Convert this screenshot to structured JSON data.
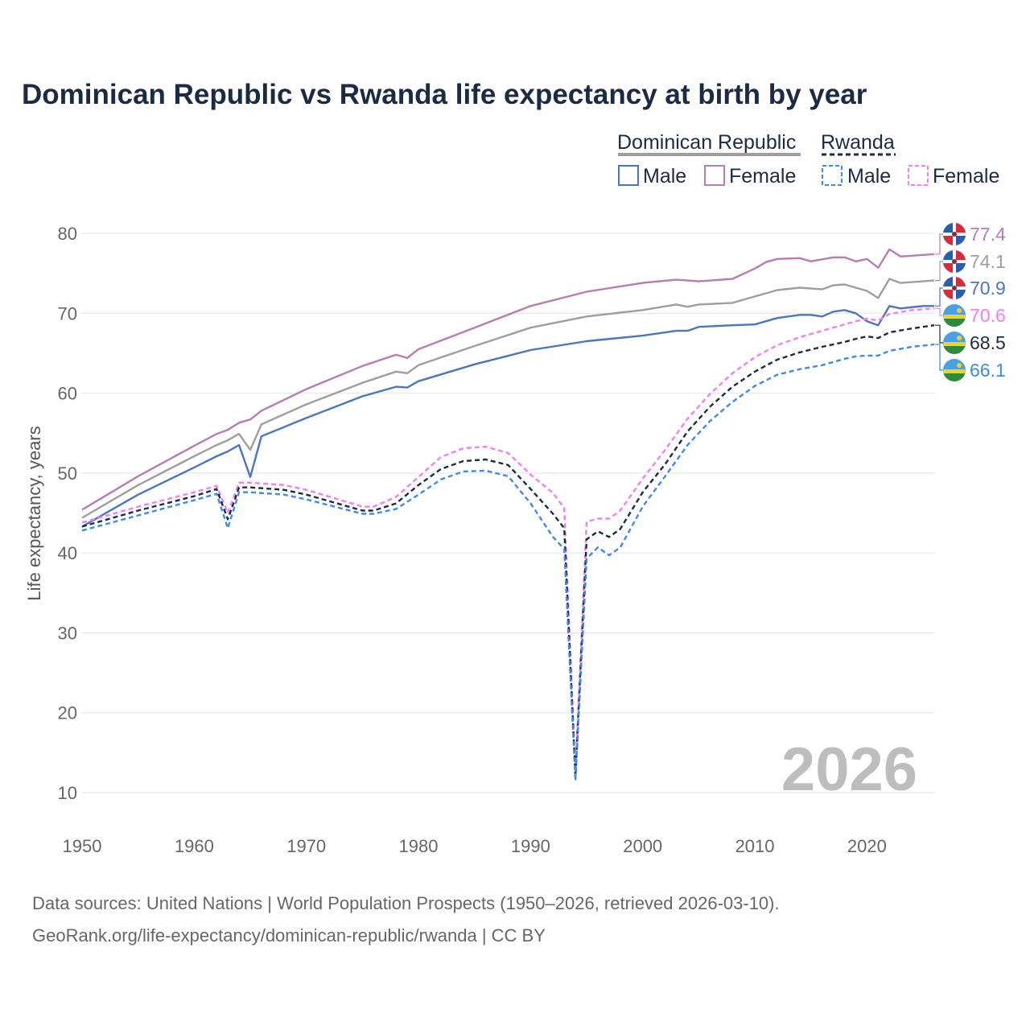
{
  "title": "Dominican Republic vs Rwanda life expectancy at birth by year",
  "legend": {
    "dominican_republic": {
      "name": "Dominican Republic",
      "male": "Male",
      "female": "Female"
    },
    "rwanda": {
      "name": "Rwanda",
      "male": "Male",
      "female": "Female"
    }
  },
  "big_year": "2026",
  "source_line1": "Data sources: United Nations | World Population Prospects (1950–2026, retrieved 2026-03-10).",
  "source_line2": "GeoRank.org/life-expectancy/dominican-republic/rwanda | CC BY",
  "colors": {
    "dr_female": "#b67db3",
    "dr_total": "#9e9e9e",
    "dr_male": "#4a76c0",
    "rw_female": "#f07ff0",
    "rw_total": "#1c2b44",
    "rw_male": "#3f8ae6"
  },
  "chart_data": {
    "type": "line",
    "title": "Dominican Republic vs Rwanda life expectancy at birth by year",
    "xlabel": "",
    "ylabel": "Life expectancy, years",
    "xlim": [
      1950,
      2026
    ],
    "ylim": [
      10,
      82
    ],
    "x_ticks": [
      1950,
      1960,
      1970,
      1980,
      1990,
      2000,
      2010,
      2020
    ],
    "y_ticks": [
      10,
      20,
      30,
      40,
      50,
      60,
      70,
      80
    ],
    "grid": true,
    "legend_position": "top-right",
    "series": [
      {
        "key": "dr_female",
        "name": "Dominican Republic Female",
        "dashed": false,
        "end_label": "77.4",
        "points": [
          [
            1950,
            45.4
          ],
          [
            1955,
            49.6
          ],
          [
            1960,
            53.4
          ],
          [
            1962,
            54.9
          ],
          [
            1963,
            55.4
          ],
          [
            1964,
            56.3
          ],
          [
            1965,
            56.7
          ],
          [
            1966,
            57.8
          ],
          [
            1970,
            60.5
          ],
          [
            1975,
            63.4
          ],
          [
            1978,
            64.8
          ],
          [
            1979,
            64.4
          ],
          [
            1980,
            65.5
          ],
          [
            1985,
            68.2
          ],
          [
            1990,
            70.9
          ],
          [
            1995,
            72.7
          ],
          [
            2000,
            73.8
          ],
          [
            2003,
            74.2
          ],
          [
            2005,
            74.0
          ],
          [
            2008,
            74.3
          ],
          [
            2010,
            75.6
          ],
          [
            2011,
            76.4
          ],
          [
            2012,
            76.8
          ],
          [
            2014,
            76.9
          ],
          [
            2015,
            76.5
          ],
          [
            2017,
            77.0
          ],
          [
            2018,
            77.0
          ],
          [
            2019,
            76.5
          ],
          [
            2020,
            76.8
          ],
          [
            2021,
            75.7
          ],
          [
            2022,
            78.0
          ],
          [
            2023,
            77.1
          ],
          [
            2025,
            77.3
          ],
          [
            2026,
            77.4
          ]
        ]
      },
      {
        "key": "dr_total",
        "name": "Dominican Republic Total",
        "dashed": false,
        "end_label": "74.1",
        "points": [
          [
            1950,
            44.4
          ],
          [
            1955,
            48.5
          ],
          [
            1960,
            52.1
          ],
          [
            1962,
            53.5
          ],
          [
            1963,
            54.1
          ],
          [
            1964,
            54.9
          ],
          [
            1965,
            52.9
          ],
          [
            1966,
            56.1
          ],
          [
            1970,
            58.6
          ],
          [
            1975,
            61.3
          ],
          [
            1978,
            62.7
          ],
          [
            1979,
            62.5
          ],
          [
            1980,
            63.5
          ],
          [
            1985,
            65.9
          ],
          [
            1990,
            68.2
          ],
          [
            1995,
            69.6
          ],
          [
            2000,
            70.4
          ],
          [
            2003,
            71.1
          ],
          [
            2004,
            70.8
          ],
          [
            2005,
            71.1
          ],
          [
            2008,
            71.3
          ],
          [
            2010,
            72.1
          ],
          [
            2012,
            72.9
          ],
          [
            2014,
            73.2
          ],
          [
            2016,
            73.0
          ],
          [
            2017,
            73.5
          ],
          [
            2018,
            73.6
          ],
          [
            2019,
            73.2
          ],
          [
            2020,
            72.8
          ],
          [
            2021,
            71.9
          ],
          [
            2022,
            74.3
          ],
          [
            2023,
            73.8
          ],
          [
            2025,
            74.0
          ],
          [
            2026,
            74.1
          ]
        ]
      },
      {
        "key": "dr_male",
        "name": "Dominican Republic Male",
        "dashed": false,
        "end_label": "70.9",
        "points": [
          [
            1950,
            43.3
          ],
          [
            1955,
            47.3
          ],
          [
            1960,
            50.7
          ],
          [
            1962,
            52.1
          ],
          [
            1963,
            52.7
          ],
          [
            1964,
            53.5
          ],
          [
            1965,
            49.5
          ],
          [
            1966,
            54.6
          ],
          [
            1970,
            56.9
          ],
          [
            1975,
            59.6
          ],
          [
            1978,
            60.8
          ],
          [
            1979,
            60.7
          ],
          [
            1980,
            61.5
          ],
          [
            1985,
            63.6
          ],
          [
            1990,
            65.4
          ],
          [
            1995,
            66.5
          ],
          [
            2000,
            67.2
          ],
          [
            2003,
            67.8
          ],
          [
            2004,
            67.8
          ],
          [
            2005,
            68.3
          ],
          [
            2008,
            68.5
          ],
          [
            2010,
            68.6
          ],
          [
            2012,
            69.4
          ],
          [
            2014,
            69.8
          ],
          [
            2015,
            69.8
          ],
          [
            2016,
            69.6
          ],
          [
            2017,
            70.2
          ],
          [
            2018,
            70.4
          ],
          [
            2019,
            70.0
          ],
          [
            2020,
            69.0
          ],
          [
            2021,
            68.5
          ],
          [
            2022,
            70.9
          ],
          [
            2023,
            70.6
          ],
          [
            2025,
            70.9
          ],
          [
            2026,
            70.9
          ]
        ]
      },
      {
        "key": "rw_female",
        "name": "Rwanda Female",
        "dashed": true,
        "end_label": "70.6",
        "points": [
          [
            1950,
            43.8
          ],
          [
            1955,
            45.8
          ],
          [
            1960,
            47.6
          ],
          [
            1962,
            48.4
          ],
          [
            1963,
            45.0
          ],
          [
            1964,
            48.8
          ],
          [
            1965,
            48.8
          ],
          [
            1968,
            48.5
          ],
          [
            1970,
            47.9
          ],
          [
            1975,
            45.8
          ],
          [
            1976,
            45.8
          ],
          [
            1978,
            47.0
          ],
          [
            1980,
            49.5
          ],
          [
            1982,
            52.0
          ],
          [
            1984,
            53.1
          ],
          [
            1986,
            53.3
          ],
          [
            1988,
            52.5
          ],
          [
            1990,
            49.8
          ],
          [
            1992,
            47.5
          ],
          [
            1993,
            45.6
          ],
          [
            1994,
            12.3
          ],
          [
            1995,
            43.9
          ],
          [
            1996,
            44.3
          ],
          [
            1997,
            44.3
          ],
          [
            1998,
            45.3
          ],
          [
            2000,
            49.3
          ],
          [
            2002,
            52.9
          ],
          [
            2004,
            56.8
          ],
          [
            2006,
            59.9
          ],
          [
            2008,
            62.5
          ],
          [
            2010,
            64.5
          ],
          [
            2012,
            66.0
          ],
          [
            2014,
            67.0
          ],
          [
            2016,
            67.8
          ],
          [
            2018,
            68.6
          ],
          [
            2019,
            69.0
          ],
          [
            2020,
            69.3
          ],
          [
            2021,
            69.1
          ],
          [
            2022,
            69.9
          ],
          [
            2024,
            70.4
          ],
          [
            2026,
            70.6
          ]
        ]
      },
      {
        "key": "rw_total",
        "name": "Rwanda Total",
        "dashed": true,
        "end_label": "68.5",
        "points": [
          [
            1950,
            43.3
          ],
          [
            1955,
            45.3
          ],
          [
            1960,
            47.1
          ],
          [
            1962,
            48.0
          ],
          [
            1963,
            44.2
          ],
          [
            1964,
            48.2
          ],
          [
            1965,
            48.2
          ],
          [
            1968,
            47.9
          ],
          [
            1970,
            47.3
          ],
          [
            1975,
            45.3
          ],
          [
            1976,
            45.3
          ],
          [
            1978,
            46.2
          ],
          [
            1980,
            48.5
          ],
          [
            1982,
            50.5
          ],
          [
            1984,
            51.5
          ],
          [
            1986,
            51.7
          ],
          [
            1988,
            51.0
          ],
          [
            1990,
            48.0
          ],
          [
            1992,
            44.9
          ],
          [
            1993,
            43.1
          ],
          [
            1994,
            12.0
          ],
          [
            1995,
            41.7
          ],
          [
            1996,
            42.7
          ],
          [
            1997,
            42.0
          ],
          [
            1998,
            43.0
          ],
          [
            2000,
            47.6
          ],
          [
            2002,
            51.1
          ],
          [
            2004,
            55.2
          ],
          [
            2006,
            58.3
          ],
          [
            2008,
            60.8
          ],
          [
            2010,
            62.7
          ],
          [
            2012,
            64.2
          ],
          [
            2014,
            65.1
          ],
          [
            2016,
            65.8
          ],
          [
            2018,
            66.4
          ],
          [
            2019,
            66.8
          ],
          [
            2020,
            67.1
          ],
          [
            2021,
            66.9
          ],
          [
            2022,
            67.6
          ],
          [
            2024,
            68.1
          ],
          [
            2026,
            68.5
          ]
        ]
      },
      {
        "key": "rw_male",
        "name": "Rwanda Male",
        "dashed": true,
        "end_label": "66.1",
        "points": [
          [
            1950,
            42.8
          ],
          [
            1955,
            44.7
          ],
          [
            1960,
            46.6
          ],
          [
            1962,
            47.4
          ],
          [
            1963,
            43.1
          ],
          [
            1964,
            47.6
          ],
          [
            1965,
            47.6
          ],
          [
            1968,
            47.3
          ],
          [
            1970,
            46.7
          ],
          [
            1975,
            44.9
          ],
          [
            1976,
            44.9
          ],
          [
            1978,
            45.5
          ],
          [
            1980,
            47.3
          ],
          [
            1982,
            49.2
          ],
          [
            1984,
            50.2
          ],
          [
            1986,
            50.3
          ],
          [
            1988,
            49.6
          ],
          [
            1990,
            46.2
          ],
          [
            1992,
            42.0
          ],
          [
            1993,
            40.5
          ],
          [
            1994,
            11.5
          ],
          [
            1995,
            39.3
          ],
          [
            1996,
            40.7
          ],
          [
            1997,
            39.7
          ],
          [
            1998,
            40.7
          ],
          [
            2000,
            45.8
          ],
          [
            2002,
            49.6
          ],
          [
            2004,
            53.5
          ],
          [
            2006,
            56.5
          ],
          [
            2008,
            58.9
          ],
          [
            2010,
            60.9
          ],
          [
            2012,
            62.3
          ],
          [
            2014,
            63.0
          ],
          [
            2016,
            63.5
          ],
          [
            2018,
            64.3
          ],
          [
            2019,
            64.6
          ],
          [
            2020,
            64.7
          ],
          [
            2021,
            64.7
          ],
          [
            2022,
            65.3
          ],
          [
            2024,
            65.8
          ],
          [
            2026,
            66.1
          ]
        ]
      }
    ]
  }
}
